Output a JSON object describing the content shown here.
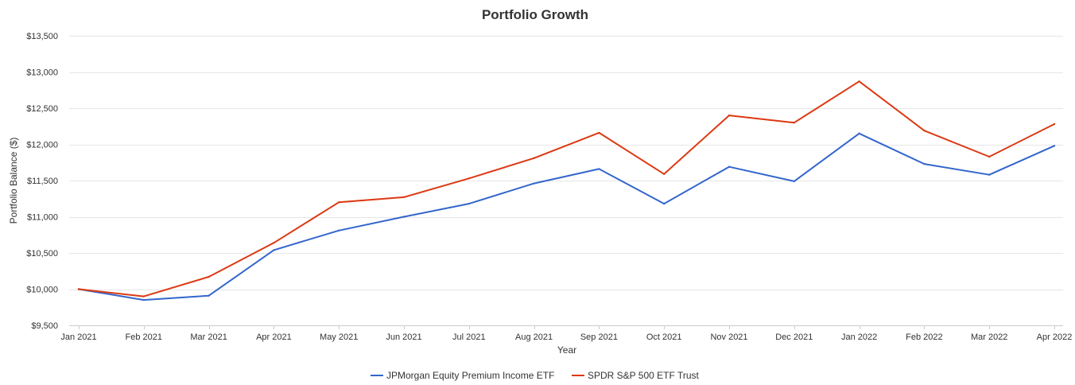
{
  "chart_data": {
    "type": "line",
    "title": "Portfolio Growth",
    "xlabel": "Year",
    "ylabel": "Portfolio Balance ($)",
    "categories": [
      "Jan 2021",
      "Feb 2021",
      "Mar 2021",
      "Apr 2021",
      "May 2021",
      "Jun 2021",
      "Jul 2021",
      "Aug 2021",
      "Sep 2021",
      "Oct 2021",
      "Nov 2021",
      "Dec 2021",
      "Jan 2022",
      "Feb 2022",
      "Mar 2022",
      "Apr 2022"
    ],
    "ylim": [
      9500,
      13500
    ],
    "yticks": [
      9500,
      10000,
      10500,
      11000,
      11500,
      12000,
      12500,
      13000,
      13500
    ],
    "ytick_labels": [
      "$9,500",
      "$10,000",
      "$10,500",
      "$11,000",
      "$11,500",
      "$12,000",
      "$12,500",
      "$13,000",
      "$13,500"
    ],
    "grid": true,
    "legend_position": "bottom",
    "series": [
      {
        "name": "JPMorgan Equity Premium Income ETF",
        "color": "#3366cc",
        "values": [
          10000,
          9850,
          9910,
          10540,
          10810,
          11000,
          11180,
          11460,
          11660,
          11180,
          11690,
          11490,
          12150,
          11730,
          11580,
          11980
        ]
      },
      {
        "name": "SPDR S&P 500 ETF Trust",
        "color": "#dc3912",
        "values": [
          10000,
          9900,
          10170,
          10640,
          11200,
          11270,
          11530,
          11810,
          12160,
          11590,
          12400,
          12300,
          12870,
          12190,
          11830,
          12280
        ]
      }
    ]
  }
}
